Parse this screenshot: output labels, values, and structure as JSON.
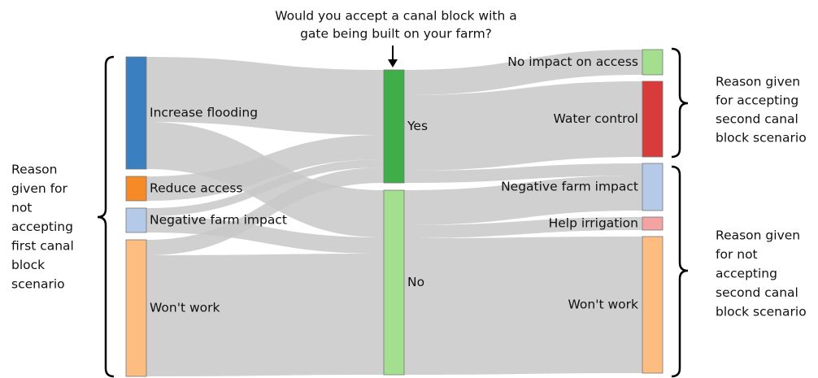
{
  "chart_data": {
    "type": "sankey",
    "nodes": [
      {
        "name": "Increase flooding",
        "color": "#3a7fbf",
        "column": 0
      },
      {
        "name": "Reduce access",
        "color": "#f58a27",
        "column": 0
      },
      {
        "name": "Negative farm impact",
        "color": "#b5c9e8",
        "column": 0
      },
      {
        "name": "Won't work",
        "color": "#fdbd80",
        "column": 0
      },
      {
        "name": "Yes",
        "color": "#3fae49",
        "column": 1
      },
      {
        "name": "No",
        "color": "#a3df8e",
        "column": 1
      },
      {
        "name": "No impact on access",
        "color": "#a3df8e",
        "column": 2
      },
      {
        "name": "Water control",
        "color": "#d93a3a",
        "column": 2
      },
      {
        "name": "Negative farm impact",
        "color": "#b5c9e8",
        "column": 2
      },
      {
        "name": "Help irrigation",
        "color": "#f4a3a3",
        "column": 2
      },
      {
        "name": "Won't work",
        "color": "#fdbd80",
        "column": 2
      }
    ],
    "links": [
      {
        "source": 0,
        "target": 4,
        "value": 80
      },
      {
        "source": 0,
        "target": 5,
        "value": 58
      },
      {
        "source": 1,
        "target": 4,
        "value": 30
      },
      {
        "source": 2,
        "target": 4,
        "value": 10
      },
      {
        "source": 2,
        "target": 5,
        "value": 20
      },
      {
        "source": 3,
        "target": 4,
        "value": 19
      },
      {
        "source": 3,
        "target": 5,
        "value": 149
      },
      {
        "source": 4,
        "target": 6,
        "value": 31
      },
      {
        "source": 4,
        "target": 7,
        "value": 93
      },
      {
        "source": 4,
        "target": 8,
        "value": 15
      },
      {
        "source": 5,
        "target": 8,
        "value": 43
      },
      {
        "source": 5,
        "target": 9,
        "value": 16
      },
      {
        "source": 5,
        "target": 10,
        "value": 168
      }
    ],
    "annotations": [
      {
        "lines": [
          "Would you accept a canal block with a",
          "gate being built on your farm?"
        ]
      },
      {
        "lines": [
          "Reason",
          "given for",
          "not",
          "accepting",
          "first canal",
          "block",
          "scenario"
        ]
      },
      {
        "lines": [
          "Reason given",
          "for accepting",
          "second canal",
          "block scenario"
        ]
      },
      {
        "lines": [
          "Reason given",
          "for not",
          "accepting",
          "second canal",
          "block scenario"
        ]
      }
    ]
  }
}
